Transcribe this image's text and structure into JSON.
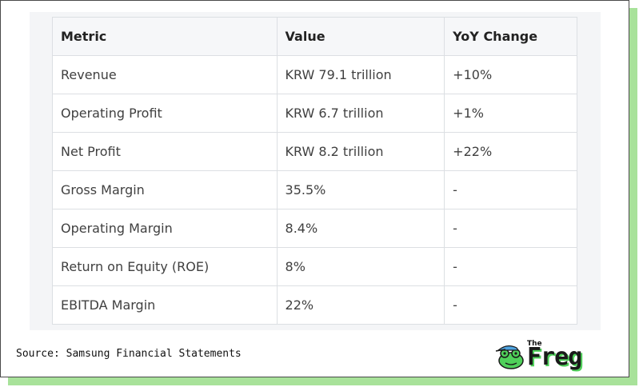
{
  "table": {
    "headers": [
      "Metric",
      "Value",
      "YoY Change"
    ],
    "rows": [
      [
        "Revenue",
        "KRW 79.1 trillion",
        "+10%"
      ],
      [
        "Operating Profit",
        "KRW 6.7 trillion",
        "+1%"
      ],
      [
        "Net Profit",
        "KRW 8.2 trillion",
        "+22%"
      ],
      [
        "Gross Margin",
        "35.5%",
        "-"
      ],
      [
        "Operating Margin",
        "8.4%",
        "-"
      ],
      [
        "Return on Equity (ROE)",
        "8%",
        "-"
      ],
      [
        "EBITDA Margin",
        "22%",
        "-"
      ]
    ]
  },
  "footer": {
    "source": "Source: Samsung Financial Statements",
    "logo_small": "The",
    "logo_word": "Freg"
  },
  "colors": {
    "shadow": "#a8e29a",
    "logo_green": "#4fd05a",
    "logo_hat": "#4ea3e0"
  }
}
